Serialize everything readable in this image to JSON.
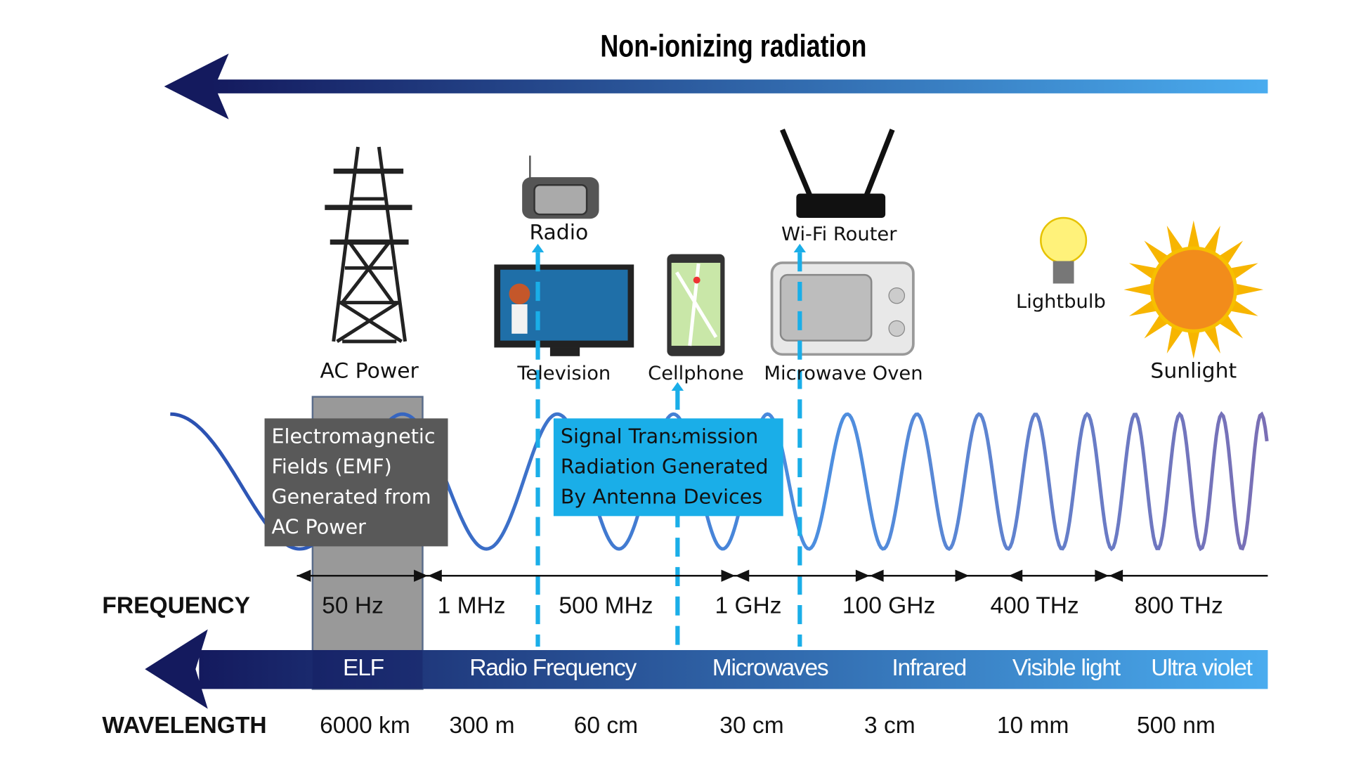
{
  "title": "Non-ionizing radiation",
  "sources": [
    "AC Power",
    "Radio",
    "Television",
    "Cellphone",
    "Wi-Fi Router",
    "Microwave Oven",
    "Lightbulb",
    "Sunlight"
  ],
  "annotations": [
    {
      "lines": [
        "Electromagnetic",
        "Fields (EMF)",
        "Generated from",
        "AC Power"
      ]
    },
    {
      "lines": [
        "Signal Transmission",
        "Radiation Generated",
        "By Antenna Devices"
      ]
    }
  ],
  "frequency": {
    "label": "FREQUENCY",
    "values": [
      "50 Hz",
      "1 MHz",
      "500 MHz",
      "1 GHz",
      "100 GHz",
      "400 THz",
      "800 THz"
    ]
  },
  "bands": [
    "ELF",
    "Radio Frequency",
    "Microwaves",
    "Infrared",
    "Visible light",
    "Ultra violet"
  ],
  "wavelength": {
    "label": "WAVELENGTH",
    "values": [
      "6000 km",
      "300 m",
      "60 cm",
      "30 cm",
      "3 cm",
      "10 mm",
      "500 nm"
    ]
  }
}
